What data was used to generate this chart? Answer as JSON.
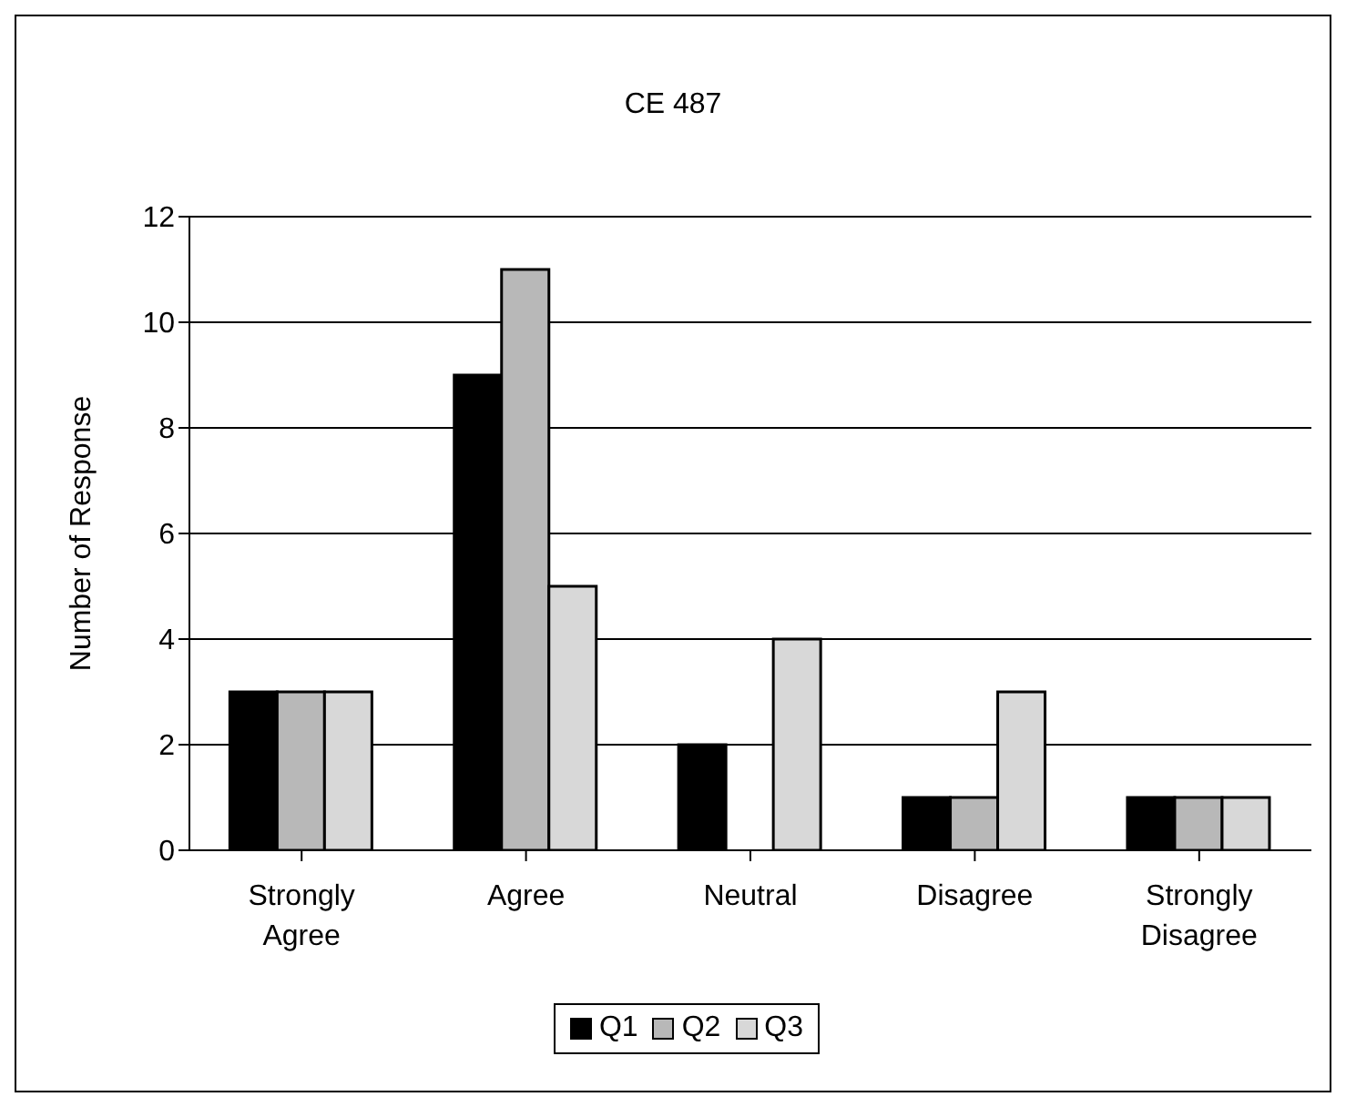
{
  "chart_data": {
    "type": "bar",
    "title": "CE 487",
    "ylabel": "Number of Response",
    "categories": [
      "Strongly Agree",
      "Agree",
      "Neutral",
      "Disagree",
      "Strongly Disagree"
    ],
    "series": [
      {
        "name": "Q1",
        "color": "#000000",
        "values": [
          3,
          9,
          2,
          1,
          1
        ]
      },
      {
        "name": "Q2",
        "color": "#b8b8b8",
        "values": [
          3,
          11,
          0,
          1,
          1
        ]
      },
      {
        "name": "Q3",
        "color": "#d8d8d8",
        "values": [
          3,
          5,
          4,
          3,
          1
        ]
      }
    ],
    "ylim": [
      0,
      12
    ],
    "yticks": [
      0,
      2,
      4,
      6,
      8,
      10,
      12
    ],
    "grid": "y",
    "legend": "bottom"
  }
}
